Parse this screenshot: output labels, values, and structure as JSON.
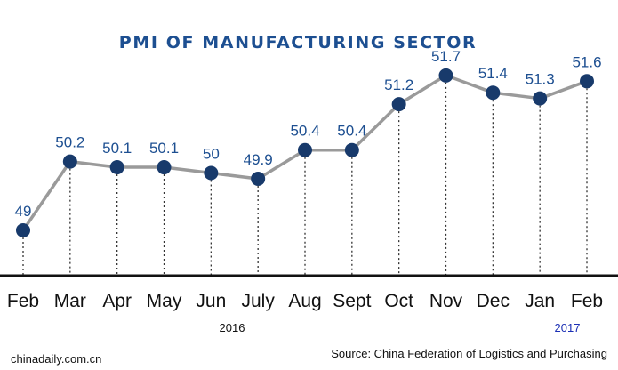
{
  "chart_data": {
    "type": "line",
    "title": "PMI OF MANUFACTURING SECTOR",
    "categories": [
      "Feb",
      "Mar",
      "Apr",
      "May",
      "Jun",
      "July",
      "Aug",
      "Sept",
      "Oct",
      "Nov",
      "Dec",
      "Jan",
      "Feb"
    ],
    "values": [
      49,
      50.2,
      50.1,
      50.1,
      50,
      49.9,
      50.4,
      50.4,
      51.2,
      51.7,
      51.4,
      51.3,
      51.6
    ],
    "data_labels": [
      "49",
      "50.2",
      "50.1",
      "50.1",
      "50",
      "49.9",
      "50.4",
      "50.4",
      "51.2",
      "51.7",
      "51.4",
      "51.3",
      "51.6"
    ],
    "year_labels": {
      "first": "2016",
      "second": "2017"
    },
    "grid": false,
    "drop_lines": "dotted",
    "colors": {
      "title": "#1d4f91",
      "marker": "#183a6b",
      "line": "#9a9a9a",
      "label": "#1d4f91",
      "axis": "#111111",
      "year_2017": "#1b2fb5"
    }
  },
  "footer": {
    "site": "chinadaily.com.cn",
    "source": "Source: China Federation of Logistics and Purchasing"
  }
}
